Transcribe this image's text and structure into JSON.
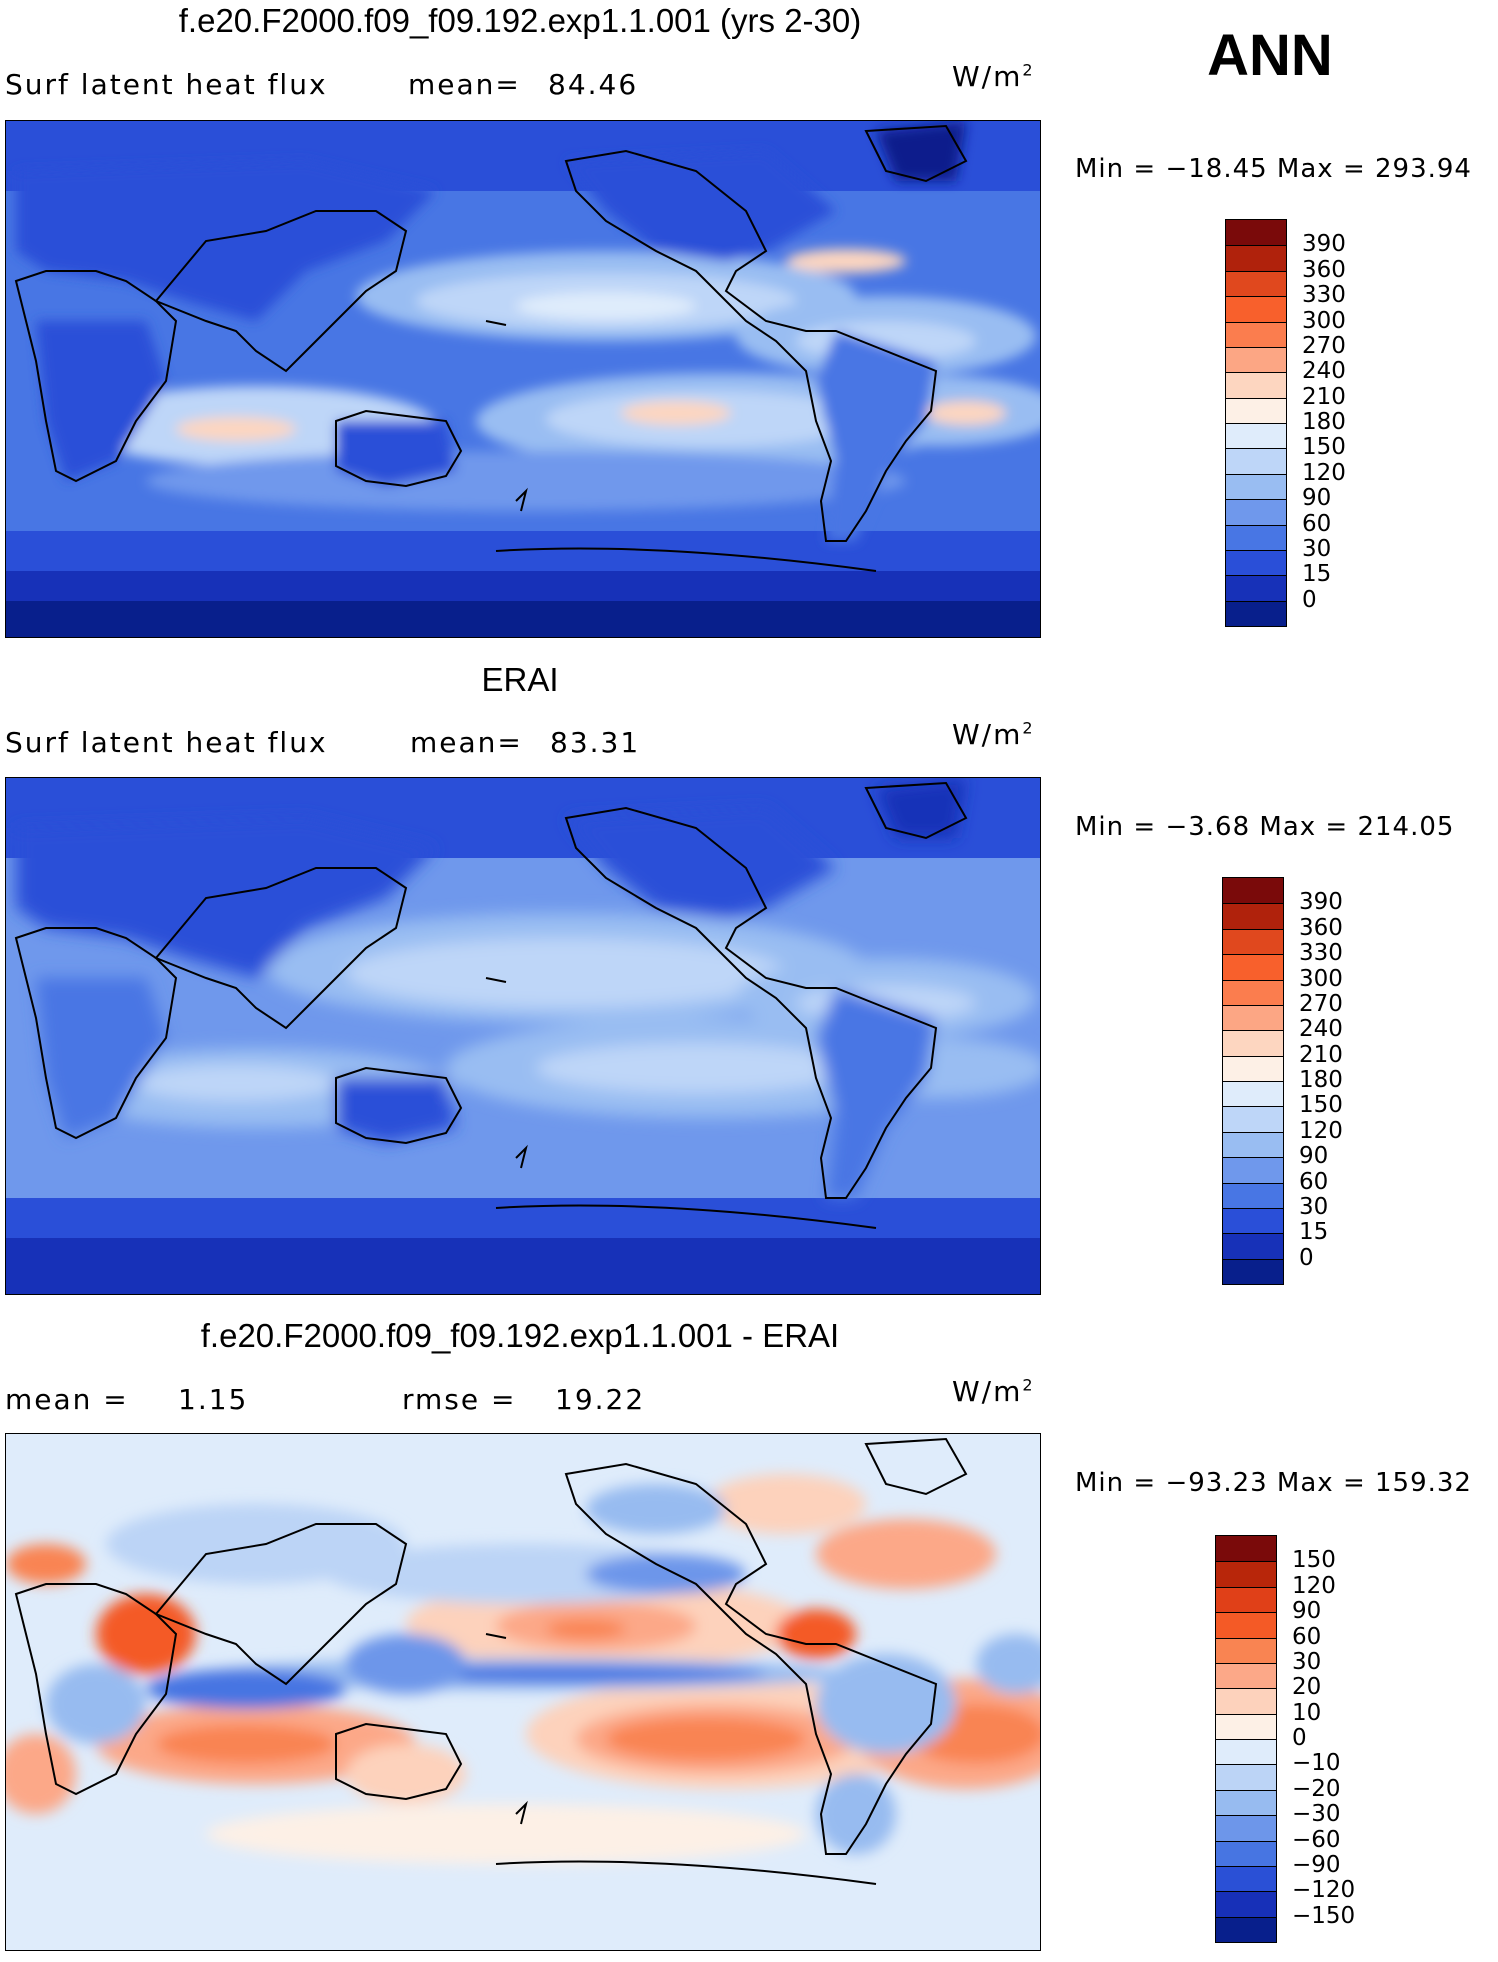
{
  "season": "ANN",
  "panels": [
    {
      "title": "f.e20.F2000.f09_f09.192.exp1.1.001 (yrs 2-30)",
      "left_label": "Surf latent heat flux",
      "mid_label": "mean=",
      "mid_value": "84.46",
      "units": "W/m",
      "units_sup": "2",
      "min_text": "Min = −18.45 Max = 293.94",
      "colorbar": {
        "colors": [
          "#7a0a0a",
          "#b0220c",
          "#e0481e",
          "#f8602c",
          "#fb7d4e",
          "#fca684",
          "#fdd6c0",
          "#fdf0e6",
          "#dfecfb",
          "#bed6f8",
          "#99bdf2",
          "#6f98ec",
          "#4876e4",
          "#2a4fd8",
          "#1731b8",
          "#081f8c"
        ],
        "ticks": [
          "390",
          "360",
          "330",
          "300",
          "270",
          "240",
          "210",
          "180",
          "150",
          "120",
          "90",
          "60",
          "30",
          "15",
          "0"
        ]
      }
    },
    {
      "title": "ERAI",
      "left_label": "Surf latent heat flux",
      "mid_label": "mean=",
      "mid_value": "83.31",
      "units": "W/m",
      "units_sup": "2",
      "min_text": "Min =  −3.68 Max = 214.05",
      "colorbar": {
        "colors": [
          "#7a0a0a",
          "#b0220c",
          "#e0481e",
          "#f8602c",
          "#fb7d4e",
          "#fca684",
          "#fdd6c0",
          "#fdf0e6",
          "#dfecfb",
          "#bed6f8",
          "#99bdf2",
          "#6f98ec",
          "#4876e4",
          "#2a4fd8",
          "#1731b8",
          "#081f8c"
        ],
        "ticks": [
          "390",
          "360",
          "330",
          "300",
          "270",
          "240",
          "210",
          "180",
          "150",
          "120",
          "90",
          "60",
          "30",
          "15",
          "0"
        ]
      }
    },
    {
      "title": "f.e20.F2000.f09_f09.192.exp1.1.001 - ERAI",
      "left_label": "mean =",
      "left_value": "1.15",
      "mid_label": "rmse =",
      "mid_value": "19.22",
      "units": "W/m",
      "units_sup": "2",
      "min_text": "Min = −93.23 Max = 159.32",
      "colorbar": {
        "colors": [
          "#7a0a0a",
          "#b8260a",
          "#e04018",
          "#f45a26",
          "#f98452",
          "#fca888",
          "#fdd2bc",
          "#fdf0e6",
          "#dfecfb",
          "#bcd4f6",
          "#97bbf0",
          "#6d96ea",
          "#4775e2",
          "#2a50d6",
          "#1730b8",
          "#081f8c"
        ],
        "ticks": [
          "150",
          "120",
          "90",
          "60",
          "30",
          "20",
          "10",
          "0",
          "−10",
          "−20",
          "−30",
          "−60",
          "−90",
          "−120",
          "−150"
        ]
      }
    }
  ]
}
